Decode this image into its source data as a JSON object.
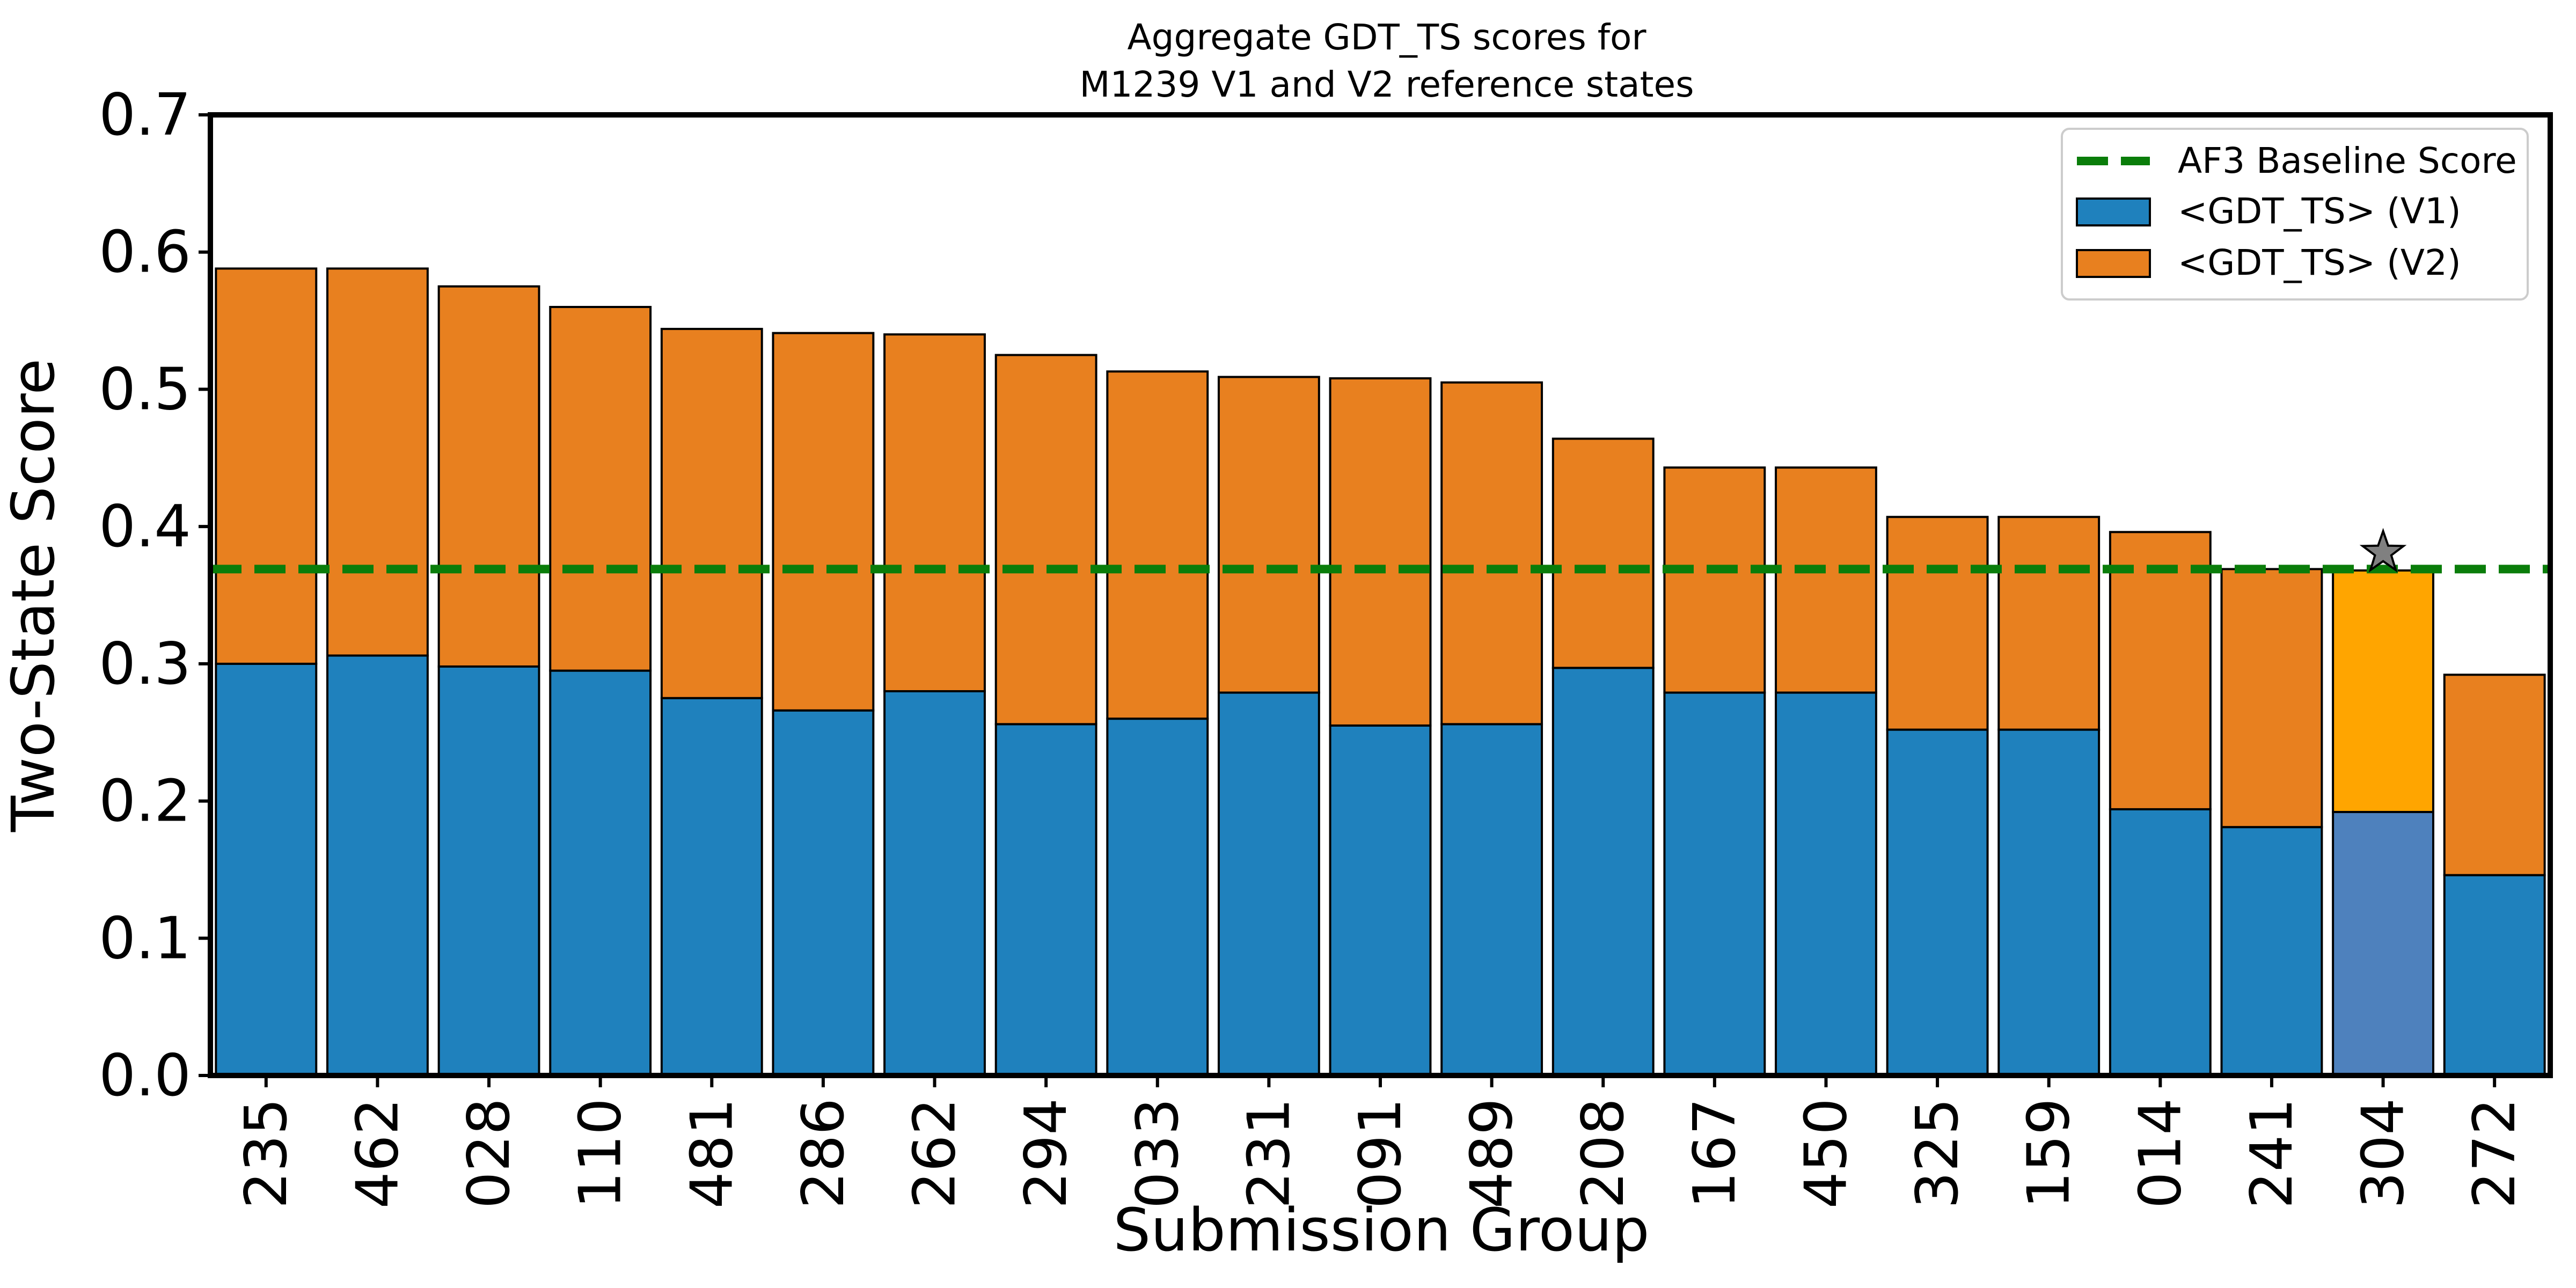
{
  "chart_data": {
    "type": "bar",
    "stacked": true,
    "title_line1": "Aggregate GDT_TS scores for",
    "title_line2": "M1239 V1 and V2 reference states",
    "xlabel": "Submission Group",
    "ylabel": "Two-State Score",
    "ylim": [
      0,
      0.7
    ],
    "yticks": [
      "0.0",
      "0.1",
      "0.2",
      "0.3",
      "0.4",
      "0.5",
      "0.6",
      "0.7"
    ],
    "grid": false,
    "legend_position": "top-right",
    "categories": [
      "235",
      "462",
      "028",
      "110",
      "481",
      "286",
      "262",
      "294",
      "033",
      "231",
      "091",
      "489",
      "208",
      "167",
      "450",
      "325",
      "159",
      "014",
      "241",
      "304",
      "272"
    ],
    "series": [
      {
        "name": "<GDT_TS> (V1)",
        "color": "#1f81bd",
        "values": [
          0.3,
          0.306,
          0.298,
          0.295,
          0.275,
          0.266,
          0.28,
          0.256,
          0.26,
          0.279,
          0.255,
          0.256,
          0.297,
          0.279,
          0.279,
          0.252,
          0.252,
          0.194,
          0.181,
          0.192,
          0.146
        ]
      },
      {
        "name": "<GDT_TS> (V2)",
        "color": "#e8801f",
        "values": [
          0.288,
          0.282,
          0.277,
          0.265,
          0.269,
          0.275,
          0.26,
          0.269,
          0.253,
          0.23,
          0.253,
          0.249,
          0.167,
          0.164,
          0.164,
          0.155,
          0.155,
          0.202,
          0.188,
          0.176,
          0.146
        ]
      }
    ],
    "baseline": {
      "name": "AF3 Baseline Score",
      "value": 0.369,
      "color": "#0a7d0a"
    },
    "highlight": {
      "category": "304",
      "v1_color": "#4e81bd",
      "v2_color": "#ffa500",
      "marker": "star-icon",
      "marker_value": 0.381,
      "marker_color": "#808080"
    }
  }
}
